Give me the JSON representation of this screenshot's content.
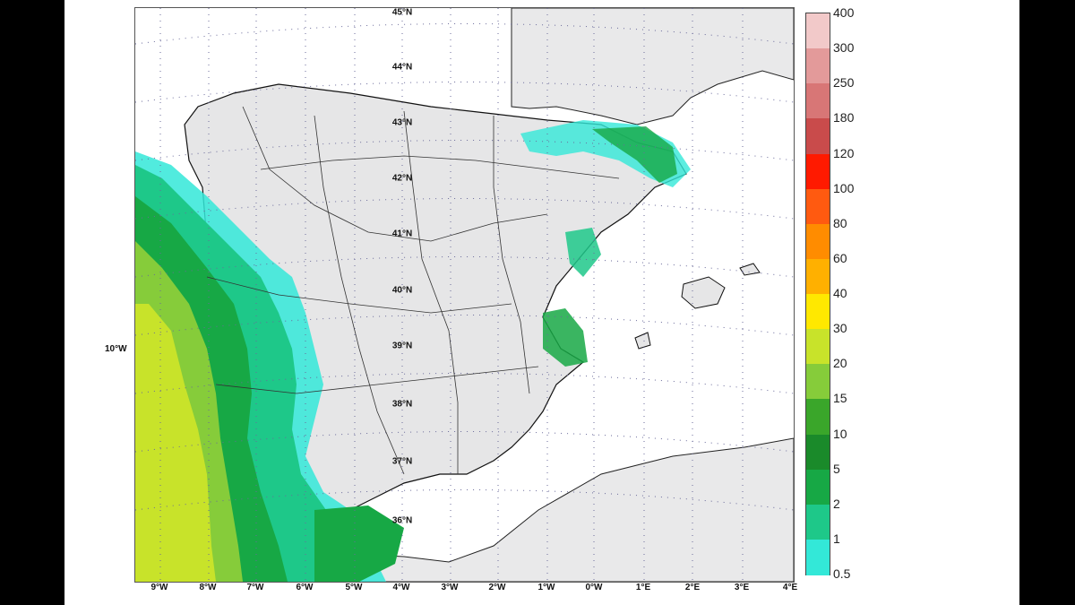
{
  "map": {
    "latitude_labels": [
      "45°N",
      "44°N",
      "43°N",
      "42°N",
      "41°N",
      "40°N",
      "39°N",
      "38°N",
      "37°N",
      "36°N"
    ],
    "longitude_labels": [
      "9°W",
      "8°W",
      "7°W",
      "6°W",
      "5°W",
      "4°W",
      "3°W",
      "2°W",
      "1°W",
      "0°W",
      "1°E",
      "2°E",
      "3°E",
      "4°E"
    ],
    "west_edge_label": "10°W"
  },
  "legend": {
    "levels": [
      "400",
      "300",
      "250",
      "180",
      "120",
      "100",
      "80",
      "60",
      "40",
      "30",
      "20",
      "15",
      "10",
      "5",
      "2",
      "1",
      "0.5"
    ],
    "colors": [
      "#f2c9c9",
      "#e39a9a",
      "#d87676",
      "#c94b4b",
      "#ff1a00",
      "#ff5a10",
      "#ff8c00",
      "#ffb000",
      "#ffe800",
      "#c8e32a",
      "#86cc3a",
      "#3aa62a",
      "#1a8a2a",
      "#17a845",
      "#1ec889",
      "#33e8d8",
      "#9fdde4"
    ]
  }
}
